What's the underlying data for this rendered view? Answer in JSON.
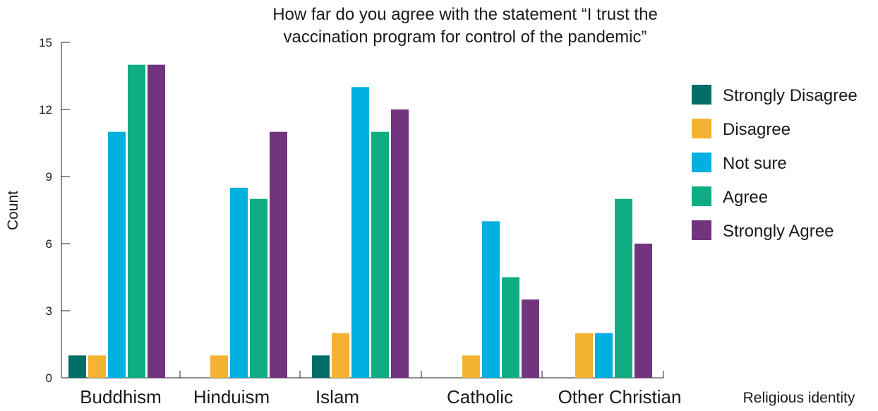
{
  "chart_data": {
    "type": "bar",
    "title": [
      "How far do you agree with the statement “I trust the",
      "vaccination program for control of the pandemic”"
    ],
    "xlabel": "Religious identity",
    "ylabel": "Count",
    "ylim": [
      0,
      15
    ],
    "yticks": [
      0,
      3,
      6,
      9,
      12,
      15
    ],
    "categories": [
      "Buddhism",
      "Hinduism",
      "Islam",
      "Catholic",
      "Other Christian"
    ],
    "series": [
      {
        "name": "Strongly Disagree",
        "color": "#006d67",
        "values": [
          1,
          0,
          1,
          0,
          0
        ]
      },
      {
        "name": "Disagree",
        "color": "#f4b233",
        "values": [
          1,
          1,
          2,
          1,
          2
        ]
      },
      {
        "name": "Not sure",
        "color": "#00b0e0",
        "values": [
          11,
          8.5,
          13,
          7,
          2
        ]
      },
      {
        "name": "Agree",
        "color": "#10ad84",
        "values": [
          14,
          8,
          11,
          4.5,
          8
        ]
      },
      {
        "name": "Strongly Agree",
        "color": "#72337f",
        "values": [
          14,
          11,
          12,
          3.5,
          6
        ]
      }
    ],
    "legend": "right",
    "grid": false
  }
}
